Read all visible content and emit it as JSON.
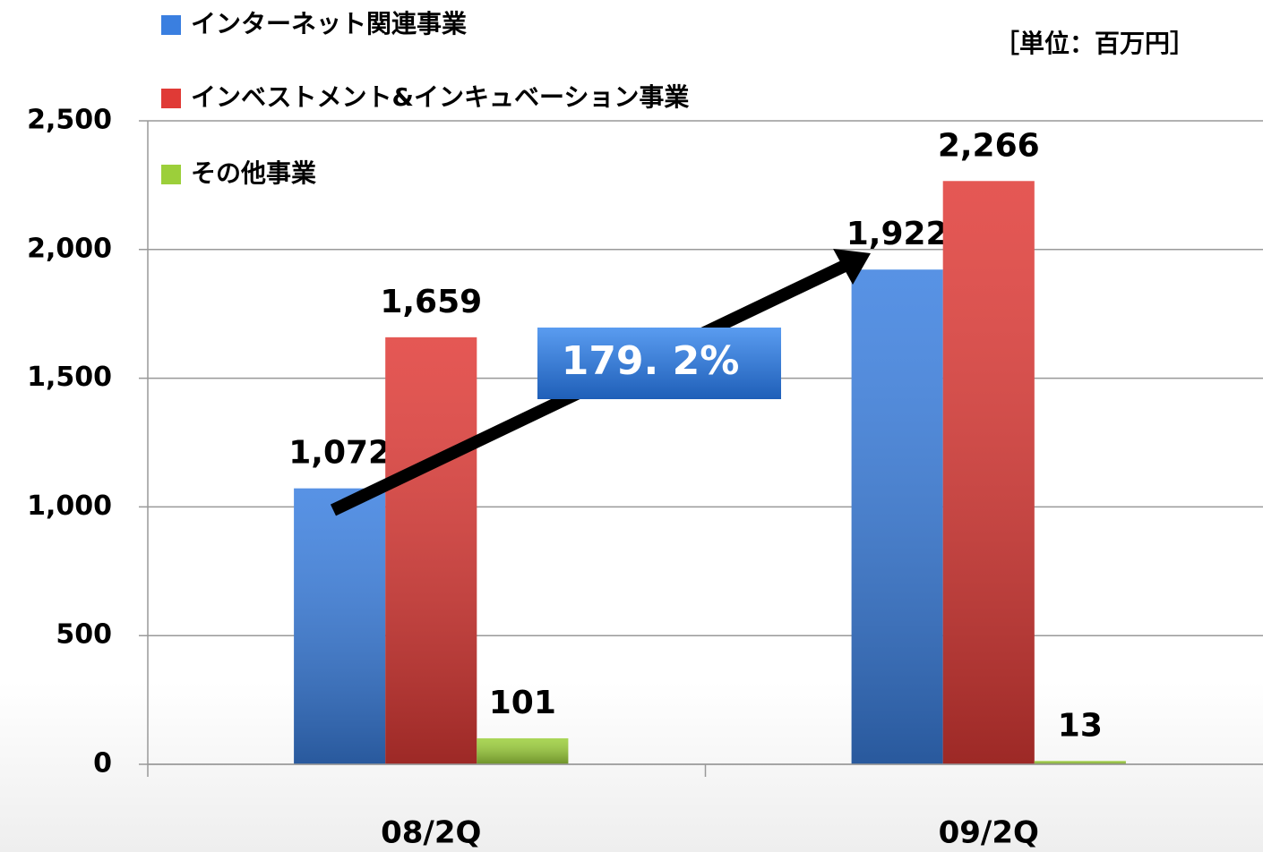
{
  "chart_data": {
    "type": "bar",
    "unit_label": "［単位：百万円］",
    "annotation": "179. 2%",
    "categories": [
      "08/2Q",
      "09/2Q"
    ],
    "series": [
      {
        "name": "インターネット関連事業",
        "color": "#3a7fe0",
        "values": [
          1072,
          1922
        ],
        "value_labels": [
          "1,072",
          "1,922"
        ]
      },
      {
        "name": "インベストメント&インキュベーション事業",
        "color": "#e03a36",
        "values": [
          1659,
          2266
        ],
        "value_labels": [
          "1,659",
          "2,266"
        ]
      },
      {
        "name": "その他事業",
        "color": "#9ccf3a",
        "values": [
          101,
          13
        ]
      }
    ],
    "ylim": [
      0,
      2500
    ],
    "yticks": [
      0,
      500,
      {
        "value": 1000,
        "label": "1,000"
      },
      {
        "value": 1500,
        "label": "1,500"
      },
      {
        "value": 2000,
        "label": "2,000"
      },
      {
        "value": 2500,
        "label": "2,500"
      }
    ],
    "grid": true,
    "legend": "top-left"
  }
}
